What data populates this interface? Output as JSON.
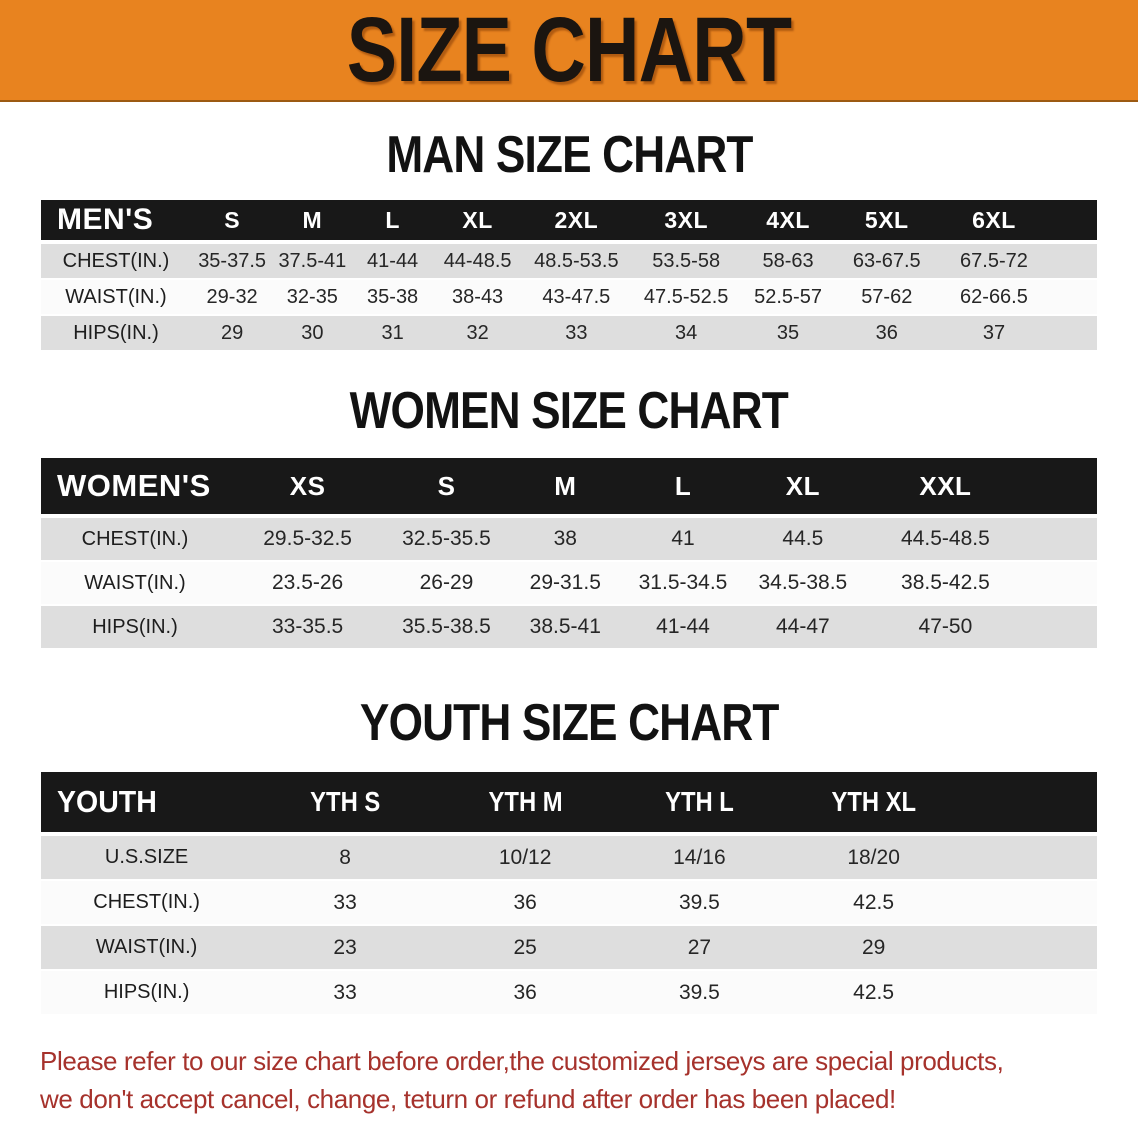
{
  "banner": {
    "title": "SIZE CHART",
    "background": "#E8831F",
    "text_color": "#1B1510"
  },
  "tables": [
    {
      "id": "mens",
      "heading": "MAN SIZE CHART",
      "corner_label": "MEN'S",
      "columns": [
        "S",
        "M",
        "L",
        "XL",
        "2XL",
        "3XL",
        "4XL",
        "5XL",
        "6XL"
      ],
      "rows": [
        {
          "label": "CHEST(IN.)",
          "values": [
            "35-37.5",
            "37.5-41",
            "41-44",
            "44-48.5",
            "48.5-53.5",
            "53.5-58",
            "58-63",
            "63-67.5",
            "67.5-72"
          ]
        },
        {
          "label": "WAIST(IN.)",
          "values": [
            "29-32",
            "32-35",
            "35-38",
            "38-43",
            "43-47.5",
            "47.5-52.5",
            "52.5-57",
            "57-62",
            "62-66.5"
          ]
        },
        {
          "label": "HIPS(IN.)",
          "values": [
            "29",
            "30",
            "31",
            "32",
            "33",
            "34",
            "35",
            "36",
            "37"
          ]
        }
      ]
    },
    {
      "id": "womens",
      "heading": "WOMEN SIZE CHART",
      "corner_label": "WOMEN'S",
      "columns": [
        "XS",
        "S",
        "M",
        "L",
        "XL",
        "XXL"
      ],
      "rows": [
        {
          "label": "CHEST(IN.)",
          "values": [
            "29.5-32.5",
            "32.5-35.5",
            "38",
            "41",
            "44.5",
            "44.5-48.5"
          ]
        },
        {
          "label": "WAIST(IN.)",
          "values": [
            "23.5-26",
            "26-29",
            "29-31.5",
            "31.5-34.5",
            "34.5-38.5",
            "38.5-42.5"
          ]
        },
        {
          "label": "HIPS(IN.)",
          "values": [
            "33-35.5",
            "35.5-38.5",
            "38.5-41",
            "41-44",
            "44-47",
            "47-50"
          ]
        }
      ]
    },
    {
      "id": "youth",
      "heading": "YOUTH SIZE CHART",
      "corner_label": "YOUTH",
      "columns": [
        "YTH S",
        "YTH M",
        "YTH L",
        "YTH XL"
      ],
      "rows": [
        {
          "label": "U.S.SIZE",
          "values": [
            "8",
            "10/12",
            "14/16",
            "18/20"
          ]
        },
        {
          "label": "CHEST(IN.)",
          "values": [
            "33",
            "36",
            "39.5",
            "42.5"
          ]
        },
        {
          "label": "WAIST(IN.)",
          "values": [
            "23",
            "25",
            "27",
            "29"
          ]
        },
        {
          "label": "HIPS(IN.)",
          "values": [
            "33",
            "36",
            "39.5",
            "42.5"
          ]
        }
      ]
    }
  ],
  "footer": {
    "lines": [
      "Please refer to our size chart before order,the customized jerseys are special products,",
      "we don't accept cancel, change, teturn or refund after order has been placed!"
    ],
    "color": "#A6322C"
  },
  "colors": {
    "header_band": "#181818",
    "row_gray": "#DEDEDE",
    "row_white": "#FBFBFB"
  }
}
